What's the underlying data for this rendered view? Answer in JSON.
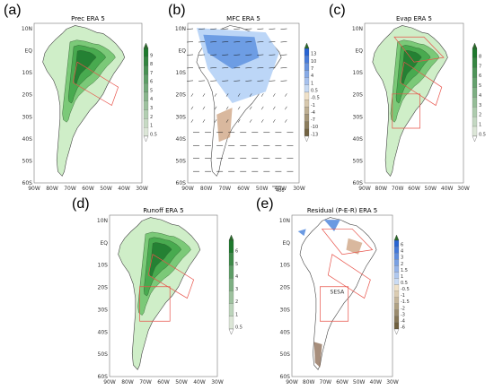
{
  "figure": {
    "panels": [
      {
        "id": "a",
        "label": "(a)",
        "title": "Prec ERA 5",
        "field": "precipitation",
        "palette": "green",
        "colorbar_ticks": [
          "9",
          "8",
          "7",
          "6",
          "5",
          "4",
          "3",
          "2",
          "1",
          "0.5"
        ],
        "y_ticks": [
          "10N",
          "EQ",
          "10S",
          "20S",
          "30S",
          "40S",
          "50S",
          "60S"
        ],
        "x_ticks": [
          "90W",
          "80W",
          "70W",
          "60W",
          "50W",
          "40W",
          "30W"
        ],
        "boxes": 1
      },
      {
        "id": "b",
        "label": "(b)",
        "title": "MFC ERA 5",
        "field": "moisture flux convergence",
        "palette": "blue-brown",
        "colorbar_ticks": [
          "13",
          "10",
          "7",
          "4",
          "1",
          "0.5",
          "-0.5",
          "-1",
          "-4",
          "-7",
          "-10",
          "-13"
        ],
        "y_ticks": [
          "10N",
          "EQ",
          "10S",
          "20S",
          "30S",
          "40S",
          "50S",
          "60S"
        ],
        "x_ticks": [
          "90W",
          "80W",
          "70W",
          "60W",
          "50W",
          "40W",
          "30W"
        ],
        "vector_ref": "400",
        "boxes": 0
      },
      {
        "id": "c",
        "label": "(c)",
        "title": "Evap ERA 5",
        "field": "evaporation",
        "palette": "green",
        "colorbar_ticks": [
          "8",
          "7",
          "6",
          "5",
          "4",
          "3",
          "2",
          "1",
          "0.5"
        ],
        "y_ticks": [
          "10N",
          "EQ",
          "10S",
          "20S",
          "30S",
          "40S",
          "50S",
          "60S"
        ],
        "x_ticks": [
          "90W",
          "80W",
          "70W",
          "60W",
          "50W",
          "40W",
          "30W"
        ],
        "boxes": 3
      },
      {
        "id": "d",
        "label": "(d)",
        "title": "Runoff ERA 5",
        "field": "runoff",
        "palette": "green",
        "colorbar_ticks": [
          "6",
          "5",
          "4",
          "3",
          "2",
          "1",
          "0.5"
        ],
        "y_ticks": [
          "10N",
          "EQ",
          "10S",
          "20S",
          "30S",
          "40S",
          "50S",
          "60S"
        ],
        "x_ticks": [
          "90W",
          "80W",
          "70W",
          "60W",
          "50W",
          "40W",
          "30W"
        ],
        "boxes": 2
      },
      {
        "id": "e",
        "label": "(e)",
        "title": "Residual (P-E-R) ERA 5",
        "field": "residual",
        "palette": "blue-brown",
        "colorbar_ticks": [
          "6",
          "4",
          "3",
          "2",
          "1.5",
          "1",
          "0.5",
          "-0.5",
          "-1",
          "-1.5",
          "-2",
          "-3",
          "-4",
          "-6"
        ],
        "y_ticks": [
          "10N",
          "EQ",
          "10S",
          "20S",
          "30S",
          "40S",
          "50S",
          "60S"
        ],
        "x_ticks": [
          "90W",
          "80W",
          "70W",
          "60W",
          "50W",
          "40W",
          "30W"
        ],
        "region_label": "SESA",
        "boxes": 3
      }
    ],
    "colors": {
      "box": "#e8534a",
      "coast": "#444444",
      "green_dark": "#1e7a2e",
      "green_mid": "#6cc26a",
      "green_light": "#cfeec8",
      "blue_dark": "#2c6fd6",
      "blue_light": "#bcd6f7",
      "brown": "#c99a75",
      "brown_dark": "#6d4225"
    }
  }
}
